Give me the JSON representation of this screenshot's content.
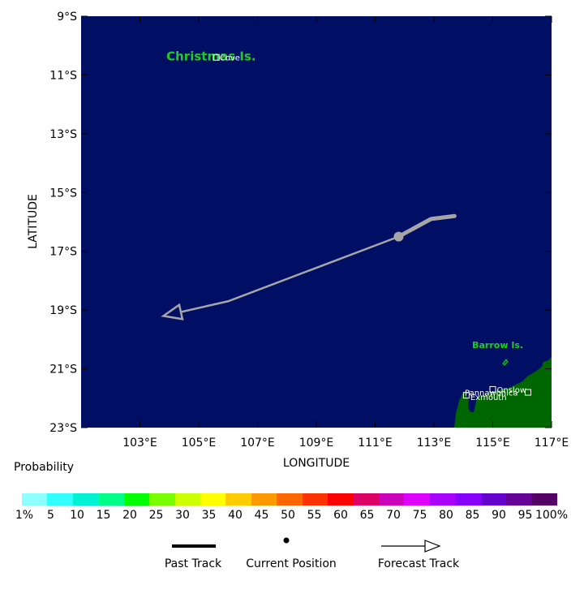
{
  "map": {
    "lon_range": [
      101,
      117
    ],
    "lat_range": [
      -23,
      -9
    ],
    "ocean_color": "#000e63",
    "land_color": "#006600",
    "track_color": "#a6a6a6",
    "xlabel": "LONGITUDE",
    "ylabel": "LATITUDE",
    "x_ticks": [
      {
        "value": 103,
        "label": "103°E"
      },
      {
        "value": 105,
        "label": "105°E"
      },
      {
        "value": 107,
        "label": "107°E"
      },
      {
        "value": 109,
        "label": "109°E"
      },
      {
        "value": 111,
        "label": "111°E"
      },
      {
        "value": 113,
        "label": "113°E"
      },
      {
        "value": 115,
        "label": "115°E"
      },
      {
        "value": 117,
        "label": "117°E"
      }
    ],
    "y_ticks": [
      {
        "value": -9,
        "label": "9°S"
      },
      {
        "value": -11,
        "label": "11°S"
      },
      {
        "value": -13,
        "label": "13°S"
      },
      {
        "value": -15,
        "label": "15°S"
      },
      {
        "value": -17,
        "label": "17°S"
      },
      {
        "value": -19,
        "label": "19°S"
      },
      {
        "value": -21,
        "label": "21°S"
      },
      {
        "value": -23,
        "label": "23°S"
      }
    ],
    "islands": [
      {
        "name": "Christmas Is.",
        "lon": 103.9,
        "lat": -10.5
      },
      {
        "name": "Barrow Is.",
        "lon": 114.3,
        "lat": -20.3
      }
    ],
    "places": [
      {
        "name": "Cove",
        "lon": 105.6,
        "lat": -10.4
      },
      {
        "name": "Onslow",
        "lon": 115.0,
        "lat": -21.7
      },
      {
        "name": "Pannawonica",
        "lon": 116.2,
        "lat": -21.8
      },
      {
        "name": "Exmouth",
        "lon": 114.1,
        "lat": -21.9
      }
    ],
    "past_track": [
      [
        113.7,
        -15.8
      ],
      [
        112.9,
        -15.9
      ],
      [
        111.8,
        -16.5
      ]
    ],
    "current_position": [
      111.8,
      -16.5
    ],
    "forecast_track": [
      [
        111.8,
        -16.5
      ],
      [
        106.0,
        -18.7
      ],
      [
        103.8,
        -19.2
      ]
    ]
  },
  "probability": {
    "title": "Probability",
    "labels": [
      "1%",
      "5",
      "10",
      "15",
      "20",
      "25",
      "30",
      "35",
      "40",
      "45",
      "50",
      "55",
      "60",
      "65",
      "70",
      "75",
      "80",
      "85",
      "90",
      "95",
      "100%"
    ],
    "colors": [
      "#8cffff",
      "#33ffff",
      "#00f2d4",
      "#00ff88",
      "#00ff00",
      "#77ff00",
      "#ccff00",
      "#ffff00",
      "#ffcc00",
      "#ff9900",
      "#ff6600",
      "#ff3300",
      "#ff0000",
      "#dd0066",
      "#cc00bb",
      "#dd00ff",
      "#aa00ff",
      "#8800ff",
      "#6600cc",
      "#660099",
      "#550066"
    ]
  },
  "legend": {
    "past_track": "Past Track",
    "current_position": "Current Position",
    "forecast_track": "Forecast Track"
  }
}
